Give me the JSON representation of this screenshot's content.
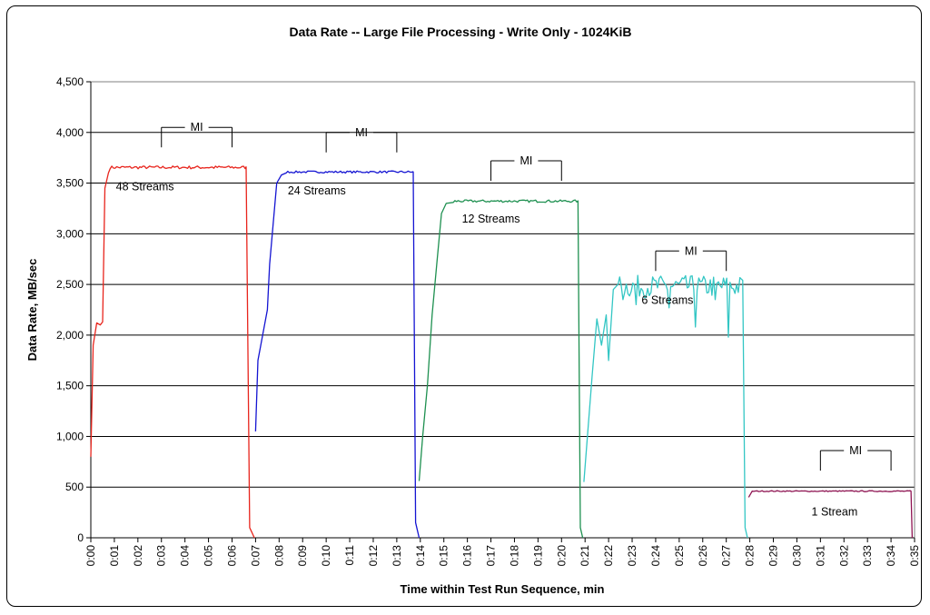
{
  "chart_data": {
    "type": "line",
    "title": "Data Rate -- Large File Processing - Write Only - 1024KiB",
    "xlabel": "Time within Test Run Sequence, min",
    "ylabel": "Data Rate, MB/sec",
    "xlim": [
      0,
      35
    ],
    "ylim": [
      0,
      4500
    ],
    "y_ticks": [
      0,
      500,
      1000,
      1500,
      2000,
      2500,
      3000,
      3500,
      4000,
      4500
    ],
    "y_tick_labels": [
      "0",
      "500",
      "1,000",
      "1,500",
      "2,000",
      "2,500",
      "3,000",
      "3,500",
      "4,000",
      "4,500"
    ],
    "x_tick_labels": [
      "0:00",
      "0:01",
      "0:02",
      "0:03",
      "0:04",
      "0:05",
      "0:06",
      "0:07",
      "0:08",
      "0:09",
      "0:10",
      "0:11",
      "0:12",
      "0:13",
      "0:14",
      "0:15",
      "0:16",
      "0:17",
      "0:18",
      "0:19",
      "0:20",
      "0:21",
      "0:22",
      "0:23",
      "0:24",
      "0:25",
      "0:26",
      "0:27",
      "0:28",
      "0:29",
      "0:30",
      "0:31",
      "0:32",
      "0:33",
      "0:34",
      "0:35"
    ],
    "grid": "horizontal",
    "legend": "none",
    "series": [
      {
        "label": "48 Streams",
        "color": "#e8241c",
        "points": [
          [
            0.0,
            800
          ],
          [
            0.1,
            1900
          ],
          [
            0.25,
            2120
          ],
          [
            0.4,
            2100
          ],
          [
            0.5,
            2130
          ],
          [
            0.6,
            3450
          ],
          [
            0.75,
            3600
          ],
          [
            0.9,
            3650
          ],
          [
            1.2,
            3640
          ],
          [
            2.0,
            3650
          ],
          [
            3.0,
            3660
          ],
          [
            4.0,
            3650
          ],
          [
            5.0,
            3660
          ],
          [
            6.0,
            3655
          ],
          [
            6.6,
            3660
          ],
          [
            6.75,
            100
          ],
          [
            6.95,
            0
          ]
        ],
        "start": 0.75,
        "end": 6.6,
        "level": 3655,
        "jitter": 15
      },
      {
        "label": "24 Streams",
        "color": "#1414d2",
        "points": [
          [
            7.0,
            1050
          ],
          [
            7.1,
            1750
          ],
          [
            7.3,
            2000
          ],
          [
            7.5,
            2250
          ],
          [
            7.6,
            2700
          ],
          [
            7.75,
            3100
          ],
          [
            7.9,
            3500
          ],
          [
            8.1,
            3580
          ],
          [
            8.3,
            3600
          ],
          [
            9.0,
            3610
          ],
          [
            10.0,
            3610
          ],
          [
            11.0,
            3610
          ],
          [
            12.0,
            3615
          ],
          [
            13.0,
            3610
          ],
          [
            13.7,
            3610
          ],
          [
            13.8,
            150
          ],
          [
            13.95,
            0
          ]
        ],
        "start": 8.3,
        "end": 13.7,
        "level": 3610,
        "jitter": 10
      },
      {
        "label": "12 Streams",
        "color": "#1e9050",
        "points": [
          [
            13.95,
            560
          ],
          [
            14.1,
            1000
          ],
          [
            14.3,
            1500
          ],
          [
            14.5,
            2200
          ],
          [
            14.7,
            2700
          ],
          [
            14.9,
            3200
          ],
          [
            15.1,
            3300
          ],
          [
            15.4,
            3310
          ],
          [
            16.0,
            3320
          ],
          [
            17.0,
            3320
          ],
          [
            18.0,
            3325
          ],
          [
            19.0,
            3325
          ],
          [
            20.0,
            3325
          ],
          [
            20.7,
            3325
          ],
          [
            20.8,
            100
          ],
          [
            20.9,
            0
          ]
        ],
        "start": 15.4,
        "end": 20.7,
        "level": 3322,
        "jitter": 12
      },
      {
        "label": "6 Streams",
        "color": "#33c6c4",
        "points": [
          [
            20.95,
            550
          ],
          [
            21.1,
            1000
          ],
          [
            21.3,
            1600
          ],
          [
            21.5,
            2160
          ],
          [
            21.7,
            1900
          ],
          [
            21.9,
            2200
          ],
          [
            22.0,
            1750
          ],
          [
            22.2,
            2450
          ],
          [
            22.4,
            2500
          ],
          [
            23.0,
            2500
          ],
          [
            24.0,
            2500
          ],
          [
            25.0,
            2500
          ],
          [
            26.0,
            2500
          ],
          [
            27.0,
            2500
          ],
          [
            27.7,
            2540
          ],
          [
            27.8,
            100
          ],
          [
            27.9,
            0
          ]
        ],
        "start": 22.4,
        "end": 27.7,
        "level": 2480,
        "jitter": 110,
        "dips": [
          [
            22.6,
            2350
          ],
          [
            23.2,
            2300
          ],
          [
            24.6,
            2270
          ],
          [
            25.7,
            2080
          ],
          [
            26.5,
            2350
          ],
          [
            27.1,
            1980
          ]
        ]
      },
      {
        "label": "1 Stream",
        "color": "#8e1452",
        "points": [
          [
            27.95,
            400
          ],
          [
            28.1,
            460
          ],
          [
            29.0,
            460
          ],
          [
            30.0,
            460
          ],
          [
            31.0,
            465
          ],
          [
            32.0,
            460
          ],
          [
            33.0,
            460
          ],
          [
            34.0,
            460
          ],
          [
            34.85,
            460
          ],
          [
            34.9,
            0
          ]
        ],
        "start": 28.1,
        "end": 34.85,
        "level": 460,
        "jitter": 5
      }
    ],
    "annotations": [
      {
        "label": "48 Streams",
        "x": 2.3,
        "y": 3430
      },
      {
        "label": "24 Streams",
        "x": 9.6,
        "y": 3390
      },
      {
        "label": "12 Streams",
        "x": 17.0,
        "y": 3110
      },
      {
        "label": "6 Streams",
        "x": 24.5,
        "y": 2310
      },
      {
        "label": "1 Stream",
        "x": 31.6,
        "y": 220
      }
    ],
    "mi_brackets": [
      {
        "label": "MI",
        "x0": 3.0,
        "x1": 6.0,
        "y": 4050
      },
      {
        "label": "MI",
        "x0": 10.0,
        "x1": 13.0,
        "y": 4000
      },
      {
        "label": "MI",
        "x0": 17.0,
        "x1": 20.0,
        "y": 3720
      },
      {
        "label": "MI",
        "x0": 24.0,
        "x1": 27.0,
        "y": 2830
      },
      {
        "label": "MI",
        "x0": 31.0,
        "x1": 34.0,
        "y": 860
      }
    ]
  }
}
